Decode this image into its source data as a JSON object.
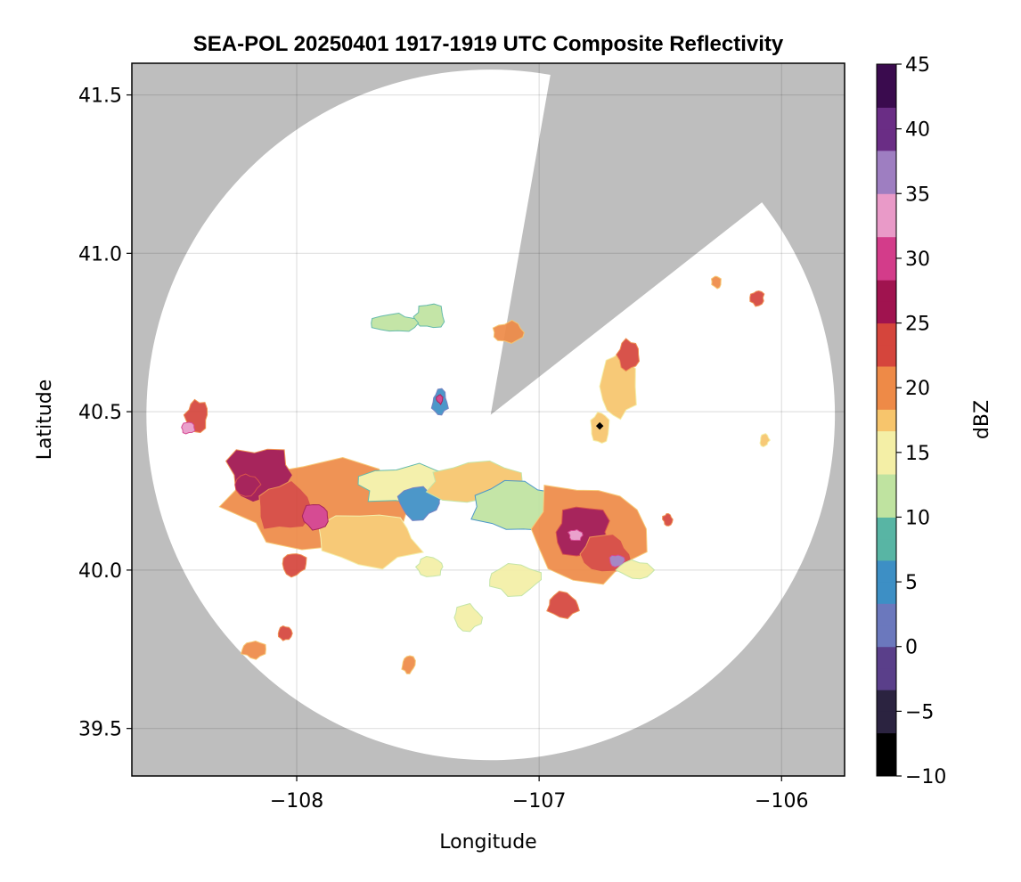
{
  "chart_data": {
    "type": "heatmap",
    "title": "SEA-POL 20250401 1917-1919 UTC Composite Reflectivity",
    "xlabel": "Longitude",
    "ylabel": "Latitude",
    "xlim": [
      -108.68,
      -105.74
    ],
    "ylim": [
      39.35,
      41.6
    ],
    "xticks": [
      -108,
      -107,
      -106
    ],
    "xtick_labels": [
      "−108",
      "−107",
      "−106"
    ],
    "yticks": [
      39.5,
      40.0,
      40.5,
      41.0,
      41.5
    ],
    "ytick_labels": [
      "39.5",
      "40.0",
      "40.5",
      "41.0",
      "41.5"
    ],
    "grid": true,
    "background_color": "#bebebe",
    "radar": {
      "center_lon": -107.2,
      "center_lat": 40.49,
      "range_extent_lon": 1.42,
      "range_extent_lat": 1.09,
      "blocked_sector_az_deg": [
        10,
        52
      ],
      "marker": {
        "lon": -106.75,
        "lat": 40.455
      }
    },
    "colorbar": {
      "label": "dBZ",
      "min": -10,
      "max": 45,
      "ticks": [
        -10,
        -5,
        0,
        5,
        10,
        15,
        20,
        25,
        30,
        35,
        40,
        45
      ],
      "tick_labels": [
        "−10",
        "−5",
        "0",
        "5",
        "10",
        "15",
        "20",
        "25",
        "30",
        "35",
        "40",
        "45"
      ],
      "colors": [
        "#000000",
        "#2b2340",
        "#5a3f8a",
        "#6b78bd",
        "#3d8fc5",
        "#58b5a4",
        "#bfe3a0",
        "#f4efa6",
        "#f7c56c",
        "#ee8a47",
        "#d5453c",
        "#a0134f",
        "#d33c8a",
        "#e99ac8",
        "#9e7ec1",
        "#6a2d85",
        "#3a0b4e"
      ]
    },
    "echo_cells": [
      {
        "lon": -107.9,
        "lat": 40.2,
        "rlon": 0.38,
        "rlat": 0.15,
        "dbz": 22
      },
      {
        "lon": -108.15,
        "lat": 40.3,
        "rlon": 0.14,
        "rlat": 0.09,
        "dbz": 26
      },
      {
        "lon": -108.05,
        "lat": 40.2,
        "rlon": 0.12,
        "rlat": 0.08,
        "dbz": 24
      },
      {
        "lon": -107.7,
        "lat": 40.1,
        "rlon": 0.22,
        "rlat": 0.09,
        "dbz": 19
      },
      {
        "lon": -107.92,
        "lat": 40.17,
        "rlon": 0.06,
        "rlat": 0.04,
        "dbz": 30
      },
      {
        "lon": -108.2,
        "lat": 40.27,
        "rlon": 0.05,
        "rlat": 0.035,
        "dbz": 28
      },
      {
        "lon": -107.55,
        "lat": 40.27,
        "rlon": 0.22,
        "rlat": 0.06,
        "dbz": 13
      },
      {
        "lon": -107.5,
        "lat": 40.21,
        "rlon": 0.09,
        "rlat": 0.05,
        "dbz": 6
      },
      {
        "lon": -107.25,
        "lat": 40.28,
        "rlon": 0.22,
        "rlat": 0.07,
        "dbz": 16
      },
      {
        "lon": -107.1,
        "lat": 40.2,
        "rlon": 0.2,
        "rlat": 0.09,
        "dbz": 10
      },
      {
        "lon": -106.8,
        "lat": 40.13,
        "rlon": 0.26,
        "rlat": 0.16,
        "dbz": 20
      },
      {
        "lon": -106.82,
        "lat": 40.12,
        "rlon": 0.12,
        "rlat": 0.08,
        "dbz": 27
      },
      {
        "lon": -106.72,
        "lat": 40.05,
        "rlon": 0.1,
        "rlat": 0.06,
        "dbz": 25
      },
      {
        "lon": -106.68,
        "lat": 40.03,
        "rlon": 0.03,
        "rlat": 0.02,
        "dbz": 36
      },
      {
        "lon": -106.85,
        "lat": 40.11,
        "rlon": 0.03,
        "rlat": 0.02,
        "dbz": 34
      },
      {
        "lon": -106.9,
        "lat": 39.89,
        "rlon": 0.07,
        "rlat": 0.04,
        "dbz": 25
      },
      {
        "lon": -106.6,
        "lat": 40.0,
        "rlon": 0.08,
        "rlat": 0.03,
        "dbz": 15
      },
      {
        "lon": -107.1,
        "lat": 39.97,
        "rlon": 0.12,
        "rlat": 0.05,
        "dbz": 14
      },
      {
        "lon": -107.3,
        "lat": 39.85,
        "rlon": 0.06,
        "rlat": 0.04,
        "dbz": 15
      },
      {
        "lon": -107.45,
        "lat": 40.01,
        "rlon": 0.06,
        "rlat": 0.03,
        "dbz": 15
      },
      {
        "lon": -108.01,
        "lat": 40.02,
        "rlon": 0.05,
        "rlat": 0.04,
        "dbz": 24
      },
      {
        "lon": -108.18,
        "lat": 39.75,
        "rlon": 0.05,
        "rlat": 0.03,
        "dbz": 22
      },
      {
        "lon": -108.05,
        "lat": 39.8,
        "rlon": 0.03,
        "rlat": 0.025,
        "dbz": 25
      },
      {
        "lon": -107.54,
        "lat": 39.7,
        "rlon": 0.03,
        "rlat": 0.03,
        "dbz": 20
      },
      {
        "lon": -108.41,
        "lat": 40.49,
        "rlon": 0.05,
        "rlat": 0.05,
        "dbz": 25
      },
      {
        "lon": -108.45,
        "lat": 40.45,
        "rlon": 0.03,
        "rlat": 0.02,
        "dbz": 33
      },
      {
        "lon": -106.68,
        "lat": 40.58,
        "rlon": 0.08,
        "rlat": 0.12,
        "dbz": 18
      },
      {
        "lon": -106.75,
        "lat": 40.45,
        "rlon": 0.04,
        "rlat": 0.05,
        "dbz": 19
      },
      {
        "lon": -106.63,
        "lat": 40.68,
        "rlon": 0.05,
        "rlat": 0.05,
        "dbz": 24
      },
      {
        "lon": -107.45,
        "lat": 40.8,
        "rlon": 0.07,
        "rlat": 0.04,
        "dbz": 12
      },
      {
        "lon": -107.6,
        "lat": 40.78,
        "rlon": 0.09,
        "rlat": 0.03,
        "dbz": 11
      },
      {
        "lon": -107.13,
        "lat": 40.75,
        "rlon": 0.07,
        "rlat": 0.035,
        "dbz": 22
      },
      {
        "lon": -107.41,
        "lat": 40.53,
        "rlon": 0.035,
        "rlat": 0.04,
        "dbz": 6
      },
      {
        "lon": -107.41,
        "lat": 40.54,
        "rlon": 0.015,
        "rlat": 0.015,
        "dbz": 31
      },
      {
        "lon": -106.1,
        "lat": 40.86,
        "rlon": 0.03,
        "rlat": 0.025,
        "dbz": 25
      },
      {
        "lon": -106.27,
        "lat": 40.91,
        "rlon": 0.02,
        "rlat": 0.02,
        "dbz": 20
      },
      {
        "lon": -106.07,
        "lat": 40.41,
        "rlon": 0.02,
        "rlat": 0.02,
        "dbz": 18
      },
      {
        "lon": -106.47,
        "lat": 40.16,
        "rlon": 0.02,
        "rlat": 0.02,
        "dbz": 24
      }
    ]
  }
}
